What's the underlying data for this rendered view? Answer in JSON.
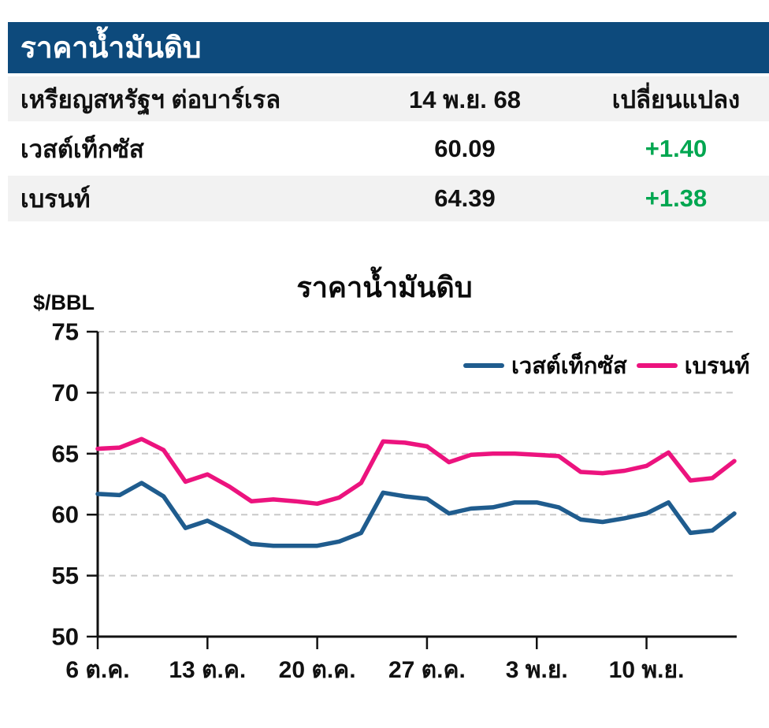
{
  "table": {
    "title": "ราคาน้ำมันดิบ",
    "header": {
      "unit": "เหรียญสหรัฐฯ ต่อบาร์เรล",
      "date": "14 พ.ย. 68",
      "change": "เปลี่ยนแปลง"
    },
    "rows": [
      {
        "name": "เวสต์เท็กซัส",
        "price": "60.09",
        "change": "+1.40"
      },
      {
        "name": "เบรนท์",
        "price": "64.39",
        "change": "+1.38"
      }
    ]
  },
  "colors": {
    "banner_bg": "#0d4a7c",
    "banner_text": "#ffffff",
    "row_alt_bg": "#f2f2f2",
    "positive_green": "#00a650",
    "wti_blue": "#1f5c8e",
    "brent_pink": "#ec137e",
    "grid_gray": "#c8c8c8",
    "axis_black": "#111111"
  },
  "chart_data": {
    "type": "line",
    "title": "ราคาน้ำมันดิบ",
    "xlabel": "",
    "ylabel": "$/BBL",
    "ylim": [
      50,
      75
    ],
    "yticks": [
      50,
      55,
      60,
      65,
      70,
      75
    ],
    "grid": "horizontal dashed",
    "legend_position": "inside top-right",
    "x": [
      "6 ต.ค.",
      "7 ต.ค.",
      "8 ต.ค.",
      "9 ต.ค.",
      "10 ต.ค.",
      "13 ต.ค.",
      "14 ต.ค.",
      "15 ต.ค.",
      "16 ต.ค.",
      "17 ต.ค.",
      "20 ต.ค.",
      "21 ต.ค.",
      "22 ต.ค.",
      "23 ต.ค.",
      "24 ต.ค.",
      "27 ต.ค.",
      "28 ต.ค.",
      "29 ต.ค.",
      "30 ต.ค.",
      "31 ต.ค.",
      "3 พ.ย.",
      "4 พ.ย.",
      "5 พ.ย.",
      "6 พ.ย.",
      "7 พ.ย.",
      "10 พ.ย.",
      "11 พ.ย.",
      "12 พ.ย.",
      "13 พ.ย.",
      "14 พ.ย."
    ],
    "x_tick_positions": [
      0,
      5,
      10,
      15,
      20,
      25
    ],
    "x_tick_labels": [
      "6 ต.ค.",
      "13 ต.ค.",
      "20 ต.ค.",
      "27 ต.ค.",
      "3 พ.ย.",
      "10 พ.ย."
    ],
    "series": [
      {
        "name": "เวสต์เท็กซัส",
        "color": "#1f5c8e",
        "values": [
          61.7,
          61.6,
          62.6,
          61.5,
          58.9,
          59.5,
          58.6,
          57.6,
          57.45,
          57.45,
          57.45,
          57.8,
          58.5,
          61.8,
          61.5,
          61.3,
          60.1,
          60.5,
          60.6,
          61.0,
          61.0,
          60.6,
          59.6,
          59.4,
          59.7,
          60.1,
          61.0,
          58.5,
          58.7,
          60.09
        ]
      },
      {
        "name": "เบรนท์",
        "color": "#ec137e",
        "values": [
          65.4,
          65.5,
          66.2,
          65.3,
          62.7,
          63.3,
          62.3,
          61.1,
          61.25,
          61.1,
          60.9,
          61.4,
          62.6,
          66.0,
          65.9,
          65.6,
          64.3,
          64.9,
          65.0,
          65.0,
          64.9,
          64.8,
          63.5,
          63.4,
          63.6,
          64.0,
          65.1,
          62.8,
          63.0,
          64.39
        ]
      }
    ]
  }
}
